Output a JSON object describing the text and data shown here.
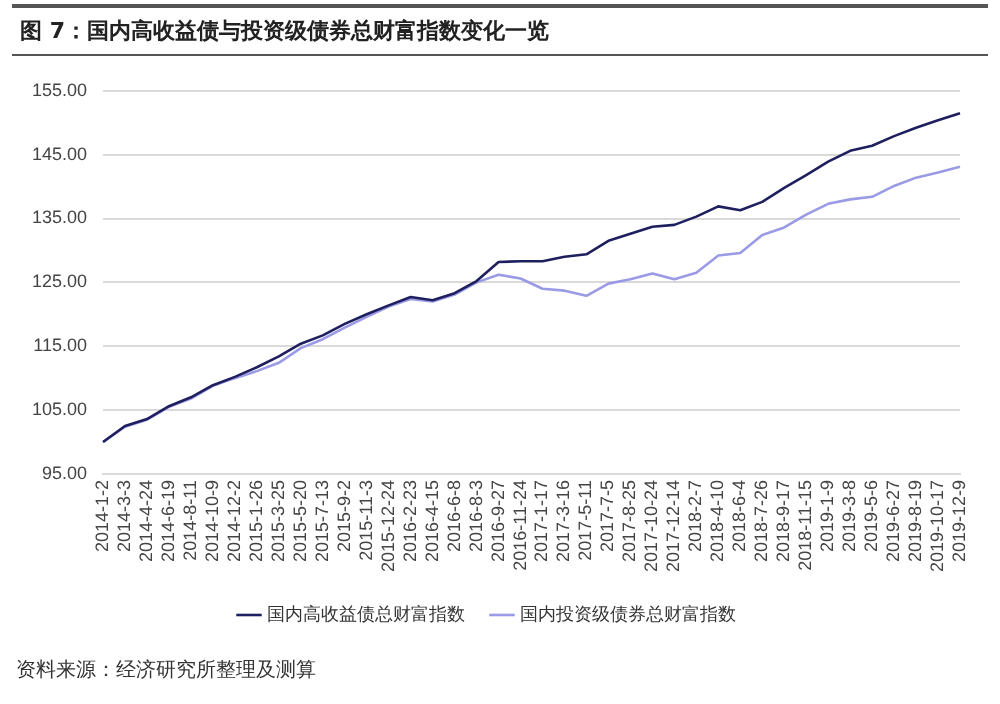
{
  "chart_data": {
    "type": "line",
    "title": "图 7：国内高收益债与投资级债券总财富指数变化一览",
    "categories": [
      "2014-1-2",
      "2014-3-3",
      "2014-4-24",
      "2014-6-19",
      "2014-8-11",
      "2014-10-9",
      "2014-12-2",
      "2015-1-26",
      "2015-3-25",
      "2015-5-20",
      "2015-7-13",
      "2015-9-2",
      "2015-11-3",
      "2015-12-24",
      "2016-2-23",
      "2016-4-15",
      "2016-6-8",
      "2016-8-3",
      "2016-9-27",
      "2016-11-24",
      "2017-1-17",
      "2017-3-16",
      "2017-5-11",
      "2017-7-5",
      "2017-8-25",
      "2017-10-24",
      "2017-12-14",
      "2018-2-7",
      "2018-4-10",
      "2018-6-4",
      "2018-7-26",
      "2018-9-17",
      "2018-11-15",
      "2019-1-9",
      "2019-3-8",
      "2019-5-6",
      "2019-6-27",
      "2019-8-19",
      "2019-10-17",
      "2019-12-9"
    ],
    "series": [
      {
        "name": "国内高收益债总财富指数",
        "color": "#1f1f5f",
        "values": [
          100.0,
          102.5,
          103.6,
          105.6,
          107.0,
          108.9,
          110.2,
          111.7,
          113.4,
          115.4,
          116.7,
          118.5,
          120.0,
          121.4,
          122.7,
          122.2,
          123.3,
          125.2,
          128.2,
          128.3,
          128.3,
          129.0,
          129.4,
          131.5,
          132.6,
          133.7,
          134.0,
          135.3,
          136.9,
          136.3,
          137.6,
          139.8,
          141.8,
          143.9,
          145.6,
          146.4,
          147.9,
          149.2,
          150.4,
          151.5
        ]
      },
      {
        "name": "国内投资级债券总财富指数",
        "color": "#9a9ae6",
        "values": [
          100.0,
          102.4,
          103.5,
          105.5,
          106.8,
          108.8,
          110.0,
          111.1,
          112.4,
          114.7,
          116.1,
          117.9,
          119.6,
          121.2,
          122.4,
          122.0,
          123.1,
          125.0,
          126.2,
          125.6,
          124.0,
          123.7,
          122.9,
          124.8,
          125.5,
          126.4,
          125.5,
          126.5,
          129.2,
          129.6,
          132.4,
          133.6,
          135.6,
          137.3,
          138.0,
          138.4,
          140.1,
          141.4,
          142.2,
          143.1
        ]
      }
    ],
    "ylim": [
      95,
      155
    ],
    "yticks": [
      {
        "value": 95,
        "label": "95.00"
      },
      {
        "value": 105,
        "label": "105.00"
      },
      {
        "value": 115,
        "label": "115.00"
      },
      {
        "value": 125,
        "label": "125.00"
      },
      {
        "value": 135,
        "label": "135.00"
      },
      {
        "value": 145,
        "label": "145.00"
      },
      {
        "value": 155,
        "label": "155.00"
      }
    ],
    "grid": "y",
    "legend": "bottom",
    "marker": "none",
    "line_style": "solid",
    "annotations": [
      "资料来源：经济研究所整理及测算"
    ]
  }
}
